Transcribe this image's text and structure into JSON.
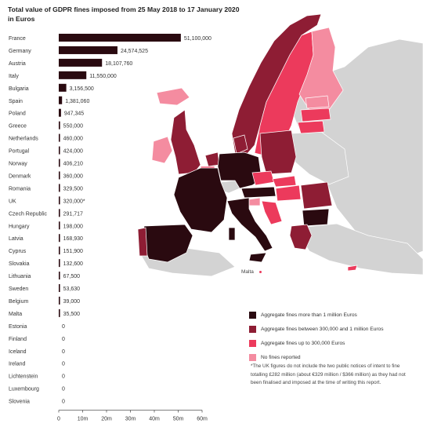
{
  "colors": {
    "above_1m": "#2a0a10",
    "between": "#8e1d34",
    "up_to_300k": "#ec3a5c",
    "none": "#f48ca0",
    "no_data": "#d3d3d3",
    "bar": "#2a0a10"
  },
  "chart_data": {
    "type": "bar",
    "orientation": "horizontal",
    "title": "Total value of GDPR fines imposed from 25 May 2018 to 17 January 2020 in Euros",
    "categories": [
      "France",
      "Germany",
      "Austria",
      "Italy",
      "Bulgaria",
      "Spain",
      "Poland",
      "Greece",
      "Netherlands",
      "Portugal",
      "Norway",
      "Denmark",
      "Romania",
      "UK",
      "Czech Republic",
      "Hungary",
      "Latvia",
      "Cyprus",
      "Slovakia",
      "Lithuania",
      "Sweden",
      "Belgium",
      "Malta",
      "Estonia",
      "Finland",
      "Iceland",
      "Ireland",
      "Lichtenstein",
      "Luxembourg",
      "Slovenia"
    ],
    "values": [
      51100000,
      24574525,
      18107760,
      11550000,
      3156500,
      1381060,
      947345,
      550000,
      460000,
      424000,
      406210,
      360000,
      329500,
      320000,
      291717,
      198000,
      168930,
      151900,
      132600,
      67500,
      53630,
      39000,
      35500,
      0,
      0,
      0,
      0,
      0,
      0,
      0
    ],
    "value_labels": [
      "51,100,000",
      "24,574,525",
      "18,107,760",
      "11,550,000",
      "3,156,500",
      "1,381,060",
      "947,345",
      "550,000",
      "460,000",
      "424,000",
      "406,210",
      "360,000",
      "329,500",
      "320,000*",
      "291,717",
      "198,000",
      "168,930",
      "151,900",
      "132,600",
      "67,500",
      "53,630",
      "39,000",
      "35,500",
      "0",
      "0",
      "0",
      "0",
      "0",
      "0",
      "0"
    ],
    "x_ticks": [
      "0",
      "10m",
      "20m",
      "30m",
      "40m",
      "50m",
      "60m"
    ],
    "xlim": [
      0,
      60000000
    ]
  },
  "map": {
    "malta_label": "Malta"
  },
  "legend": [
    {
      "key": "above_1m",
      "label": "Aggregate fines more than 1 million Euros"
    },
    {
      "key": "between",
      "label": "Aggregate fines between 300,000 and 1 million Euros"
    },
    {
      "key": "up_to_300k",
      "label": "Aggregate fines up to 300,000 Euros"
    },
    {
      "key": "none",
      "label": "No fines reported"
    }
  ],
  "footnote": "*The UK figures do not include the two public notices of intent to fine totalling £282 million (about €329 million / $366 million) as they had not been finalised and imposed at the time of writing this report."
}
